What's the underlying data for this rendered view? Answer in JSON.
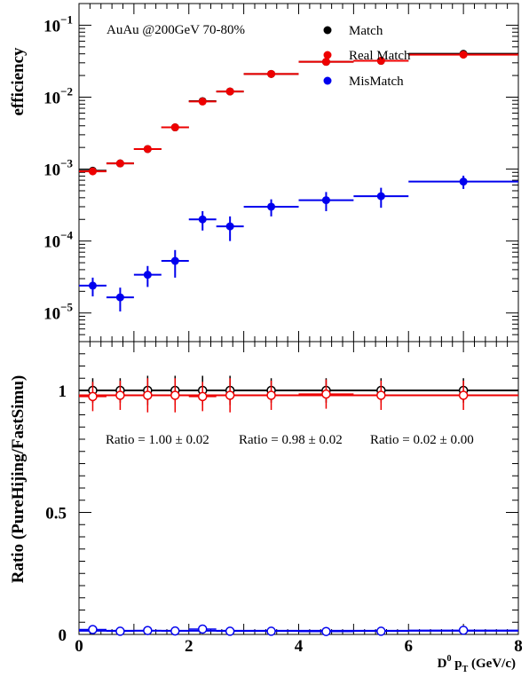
{
  "chart_data": [
    {
      "type": "scatter",
      "title": "AuAu @200GeV  70-80%",
      "ylabel": "efficiency",
      "xlabel": "",
      "yscale": "log",
      "xlim": [
        0,
        8
      ],
      "ylim": [
        4e-06,
        0.2
      ],
      "y_ticks": [
        {
          "base": "10",
          "exp": "−5",
          "value": 1e-05
        },
        {
          "base": "10",
          "exp": "−4",
          "value": 0.0001
        },
        {
          "base": "10",
          "exp": "−3",
          "value": 0.001
        },
        {
          "base": "10",
          "exp": "−2",
          "value": 0.01
        },
        {
          "base": "10",
          "exp": "−1",
          "value": 0.1
        }
      ],
      "legend_position": "top-right",
      "series": [
        {
          "name": "Match",
          "color": "#000000",
          "bins": [
            [
              0,
              0.5
            ],
            [
              0.5,
              1
            ],
            [
              1,
              1.5
            ],
            [
              1.5,
              2
            ],
            [
              2,
              2.5
            ],
            [
              2.5,
              3
            ],
            [
              3,
              4
            ],
            [
              4,
              5
            ],
            [
              5,
              6
            ],
            [
              6,
              8
            ]
          ],
          "x": [
            0.25,
            0.75,
            1.25,
            1.75,
            2.25,
            2.75,
            3.5,
            4.5,
            5.5,
            7
          ],
          "y": [
            0.00095,
            0.0012,
            0.0019,
            0.0038,
            0.0088,
            0.012,
            0.021,
            0.031,
            0.032,
            0.04
          ],
          "y_err": [
            0,
            0,
            0,
            0,
            0,
            0,
            0,
            0,
            0,
            0
          ]
        },
        {
          "name": "Real Match",
          "color": "#ee0000",
          "bins": [
            [
              0,
              0.5
            ],
            [
              0.5,
              1
            ],
            [
              1,
              1.5
            ],
            [
              1.5,
              2
            ],
            [
              2,
              2.5
            ],
            [
              2.5,
              3
            ],
            [
              3,
              4
            ],
            [
              4,
              5
            ],
            [
              5,
              6
            ],
            [
              6,
              8
            ]
          ],
          "x": [
            0.25,
            0.75,
            1.25,
            1.75,
            2.25,
            2.75,
            3.5,
            4.5,
            5.5,
            7
          ],
          "y": [
            0.00093,
            0.0012,
            0.0019,
            0.0038,
            0.0087,
            0.012,
            0.021,
            0.031,
            0.032,
            0.039
          ],
          "y_err": [
            0,
            0,
            0,
            0,
            0,
            0,
            0,
            0,
            0,
            0
          ]
        },
        {
          "name": "MisMatch",
          "color": "#0000ee",
          "bins": [
            [
              0,
              0.5
            ],
            [
              0.5,
              1
            ],
            [
              1,
              1.5
            ],
            [
              1.5,
              2
            ],
            [
              2,
              2.5
            ],
            [
              2.5,
              3
            ],
            [
              3,
              4
            ],
            [
              4,
              5
            ],
            [
              5,
              6
            ],
            [
              6,
              8
            ]
          ],
          "x": [
            0.25,
            0.75,
            1.25,
            1.75,
            2.25,
            2.75,
            3.5,
            4.5,
            5.5,
            7
          ],
          "y": [
            2.4e-05,
            1.65e-05,
            3.4e-05,
            5.3e-05,
            0.0002,
            0.00016,
            0.0003,
            0.00037,
            0.00042,
            0.00067
          ],
          "y_err_low": [
            7e-06,
            6e-06,
            1.1e-05,
            2.2e-05,
            6e-05,
            6e-05,
            8e-05,
            0.00011,
            0.00013,
            0.00014
          ],
          "y_err_high": [
            7e-06,
            6e-06,
            1.1e-05,
            2.2e-05,
            6e-05,
            6e-05,
            8e-05,
            0.00011,
            0.00013,
            0.00014
          ]
        }
      ]
    },
    {
      "type": "scatter",
      "title": "",
      "ylabel": "Ratio (PureHijing/FastSimu)",
      "xlabel": "D⁰ p_T (GeV/c)",
      "xlabel_parts": {
        "d": "D",
        "sup": "0",
        "p": " p",
        "sub": "T",
        "unit": " (GeV/c)"
      },
      "xlim": [
        0,
        8
      ],
      "ylim": [
        0,
        1.2
      ],
      "x_ticks": [
        "0",
        "2",
        "4",
        "6",
        "8"
      ],
      "y_ticks": [
        "0",
        "0.5",
        "1"
      ],
      "y_tick_values": [
        0,
        0.5,
        1
      ],
      "fit_annotations": [
        "Ratio = 1.00 ± 0.02",
        "Ratio = 0.98 ± 0.02",
        "Ratio = 0.02 ± 0.00"
      ],
      "series": [
        {
          "name": "Match",
          "color": "#000000",
          "bins": [
            [
              0,
              0.5
            ],
            [
              0.5,
              1
            ],
            [
              1,
              1.5
            ],
            [
              1.5,
              2
            ],
            [
              2,
              2.5
            ],
            [
              2.5,
              3
            ],
            [
              3,
              4
            ],
            [
              4,
              5
            ],
            [
              5,
              6
            ],
            [
              6,
              8
            ]
          ],
          "x": [
            0.25,
            0.75,
            1.25,
            1.75,
            2.25,
            2.75,
            3.5,
            4.5,
            5.5,
            7
          ],
          "y": [
            1.0,
            1.0,
            1.0,
            1.0,
            1.0,
            1.0,
            1.0,
            1.0,
            1.0,
            1.0
          ],
          "y_err": [
            0.05,
            0.05,
            0.06,
            0.06,
            0.06,
            0.06,
            0.05,
            0.05,
            0.05,
            0.05
          ],
          "fit": 1.0
        },
        {
          "name": "Real Match",
          "color": "#ee0000",
          "bins": [
            [
              0,
              0.5
            ],
            [
              0.5,
              1
            ],
            [
              1,
              1.5
            ],
            [
              1.5,
              2
            ],
            [
              2,
              2.5
            ],
            [
              2.5,
              3
            ],
            [
              3,
              4
            ],
            [
              4,
              5
            ],
            [
              5,
              6
            ],
            [
              6,
              8
            ]
          ],
          "x": [
            0.25,
            0.75,
            1.25,
            1.75,
            2.25,
            2.75,
            3.5,
            4.5,
            5.5,
            7
          ],
          "y": [
            0.975,
            0.98,
            0.98,
            0.98,
            0.975,
            0.98,
            0.98,
            0.985,
            0.98,
            0.98
          ],
          "y_err": [
            0.06,
            0.06,
            0.07,
            0.07,
            0.06,
            0.07,
            0.06,
            0.06,
            0.06,
            0.06
          ],
          "fit": 0.98
        },
        {
          "name": "MisMatch",
          "color": "#0000ee",
          "bins": [
            [
              0,
              0.5
            ],
            [
              0.5,
              1
            ],
            [
              1,
              1.5
            ],
            [
              1.5,
              2
            ],
            [
              2,
              2.5
            ],
            [
              2.5,
              3
            ],
            [
              3,
              4
            ],
            [
              4,
              5
            ],
            [
              5,
              6
            ],
            [
              6,
              8
            ]
          ],
          "x": [
            0.25,
            0.75,
            1.25,
            1.75,
            2.25,
            2.75,
            3.5,
            4.5,
            5.5,
            7
          ],
          "y": [
            0.02,
            0.013,
            0.016,
            0.014,
            0.022,
            0.013,
            0.013,
            0.012,
            0.013,
            0.017
          ],
          "y_err": [
            0.004,
            0.003,
            0.004,
            0.004,
            0.004,
            0.003,
            0.003,
            0.003,
            0.003,
            0.003
          ],
          "fit": 0.015
        }
      ]
    }
  ]
}
